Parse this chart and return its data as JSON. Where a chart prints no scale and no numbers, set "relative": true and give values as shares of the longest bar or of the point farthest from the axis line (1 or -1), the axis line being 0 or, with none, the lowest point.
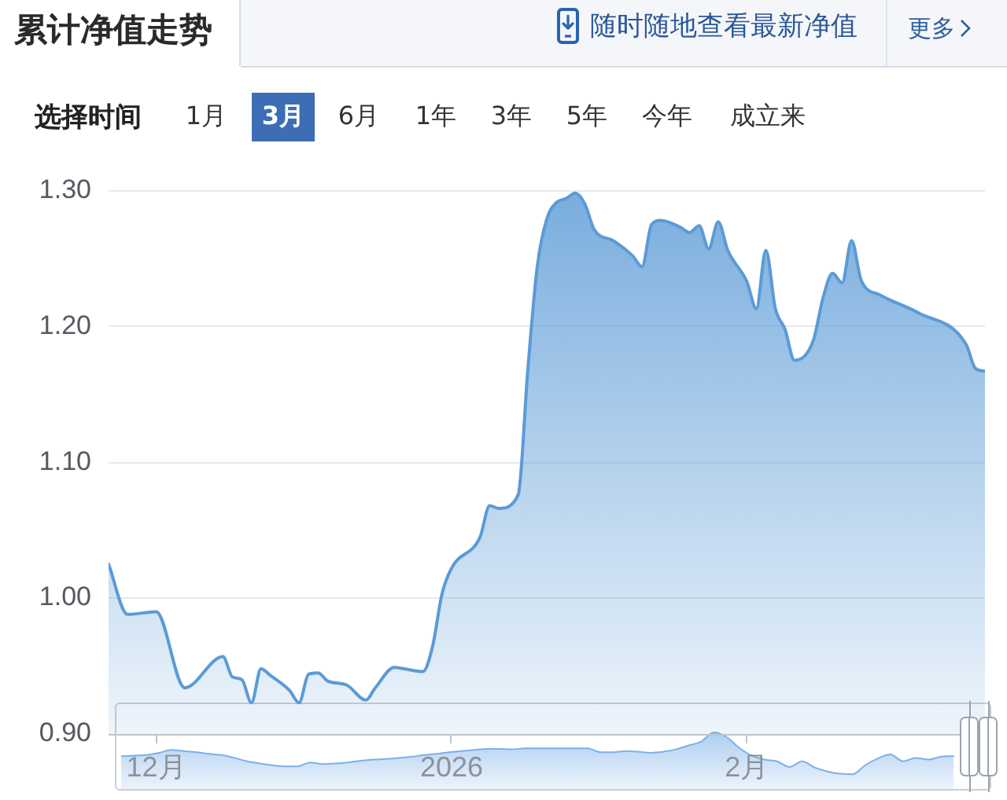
{
  "chart_data": [
    {
      "type": "area",
      "title": "累计净值走势",
      "annotations": [
        "随时随地查看最新净值",
        "更多",
        "选择时间",
        "1月",
        "3月",
        "6月",
        "1年",
        "3年",
        "5年",
        "今年",
        "成立来"
      ],
      "x": [
        "2025-11-26",
        "2025-11-28",
        "2025-12-01",
        "2025-12-04",
        "2025-12-08",
        "2025-12-09",
        "2025-12-10",
        "2025-12-11",
        "2025-12-12",
        "2025-12-13",
        "2025-12-15",
        "2025-12-16",
        "2025-12-17",
        "2025-12-18",
        "2025-12-19",
        "2025-12-21",
        "2025-12-23",
        "2025-12-24",
        "2025-12-26",
        "2025-12-27",
        "2025-12-29",
        "2025-12-30",
        "2025-12-31",
        "2026-01-01",
        "2026-01-04",
        "2026-01-05",
        "2026-01-06",
        "2026-01-08",
        "2026-01-09",
        "2026-01-10",
        "2026-01-11",
        "2026-01-12",
        "2026-01-13",
        "2026-01-14",
        "2026-01-15",
        "2026-01-16",
        "2026-01-18",
        "2026-01-20",
        "2026-01-21",
        "2026-01-22",
        "2026-01-23",
        "2026-01-25",
        "2026-01-26",
        "2026-01-27",
        "2026-01-28",
        "2026-01-29",
        "2026-01-30",
        "2026-02-01",
        "2026-02-02",
        "2026-02-03",
        "2026-02-04",
        "2026-02-05",
        "2026-02-06",
        "2026-02-08",
        "2026-02-09",
        "2026-02-10",
        "2026-02-11",
        "2026-02-12",
        "2026-02-13",
        "2026-02-15",
        "2026-02-19",
        "2026-02-24",
        "2026-02-25",
        "2026-02-26"
      ],
      "values": [
        1.025,
        0.988,
        0.99,
        0.934,
        0.957,
        0.942,
        0.94,
        0.923,
        0.948,
        0.943,
        0.932,
        0.923,
        0.944,
        0.945,
        0.939,
        0.936,
        0.925,
        0.934,
        0.949,
        0.948,
        0.946,
        0.964,
        1.003,
        1.022,
        1.045,
        1.068,
        1.066,
        1.076,
        1.167,
        1.244,
        1.279,
        1.291,
        1.294,
        1.298,
        1.29,
        1.271,
        1.263,
        1.252,
        1.244,
        1.275,
        1.278,
        1.273,
        1.269,
        1.274,
        1.257,
        1.277,
        1.256,
        1.233,
        1.213,
        1.256,
        1.213,
        1.198,
        1.175,
        1.19,
        1.221,
        1.239,
        1.232,
        1.263,
        1.234,
        1.223,
        1.21,
        1.187,
        1.169,
        1.167
      ],
      "color": "#5b9bd6",
      "xlim": [
        "2025-11-26",
        "2026-02-26"
      ],
      "xticks": [
        {
          "value": "2025-12-01",
          "label": "12月"
        },
        {
          "value": "2026-01-01",
          "label": "2026"
        },
        {
          "value": "2026-02-01",
          "label": "2月"
        }
      ],
      "ylim": [
        0.9,
        1.3
      ],
      "yticks": [
        {
          "value": 0.9,
          "label": "0.90"
        },
        {
          "value": 1.0,
          "label": "1.00"
        },
        {
          "value": 1.1,
          "label": "1.10"
        },
        {
          "value": 1.2,
          "label": "1.20"
        },
        {
          "value": 1.3,
          "label": "1.30"
        }
      ],
      "grid": "y"
    },
    {
      "type": "area",
      "relative": true,
      "tick_labels": false,
      "categories": [
        null,
        null,
        null,
        null,
        null,
        null,
        null,
        null,
        null,
        null,
        null,
        null,
        null,
        null,
        null,
        null,
        null,
        null,
        null,
        null,
        null,
        null,
        null,
        null,
        null,
        null,
        null,
        null,
        null,
        null,
        null,
        null,
        null,
        null,
        null,
        null,
        null,
        null,
        null,
        null,
        null,
        null,
        null,
        null,
        null,
        null,
        null,
        null,
        null,
        null,
        null,
        null,
        null,
        null,
        null,
        null,
        null,
        null,
        null,
        null,
        null,
        null,
        null,
        null,
        null,
        null,
        null,
        null,
        null
      ],
      "values": [
        0.58,
        0.59,
        0.6,
        0.64,
        0.69,
        0.67,
        0.65,
        0.62,
        0.6,
        0.55,
        0.49,
        0.45,
        0.42,
        0.4,
        0.4,
        0.47,
        0.44,
        0.45,
        0.47,
        0.5,
        0.52,
        0.53,
        0.55,
        0.57,
        0.6,
        0.62,
        0.65,
        0.67,
        0.69,
        0.71,
        0.71,
        0.7,
        0.72,
        0.72,
        0.72,
        0.72,
        0.72,
        0.72,
        0.65,
        0.65,
        0.67,
        0.66,
        0.64,
        0.66,
        0.7,
        0.77,
        0.84,
        1.0,
        0.92,
        0.73,
        0.59,
        0.52,
        0.49,
        0.39,
        0.49,
        0.38,
        0.31,
        0.27,
        0.26,
        0.42,
        0.54,
        0.61,
        0.49,
        0.55,
        0.52,
        0.57,
        0.58,
        null,
        null
      ],
      "color": "#7cb0e8"
    }
  ]
}
